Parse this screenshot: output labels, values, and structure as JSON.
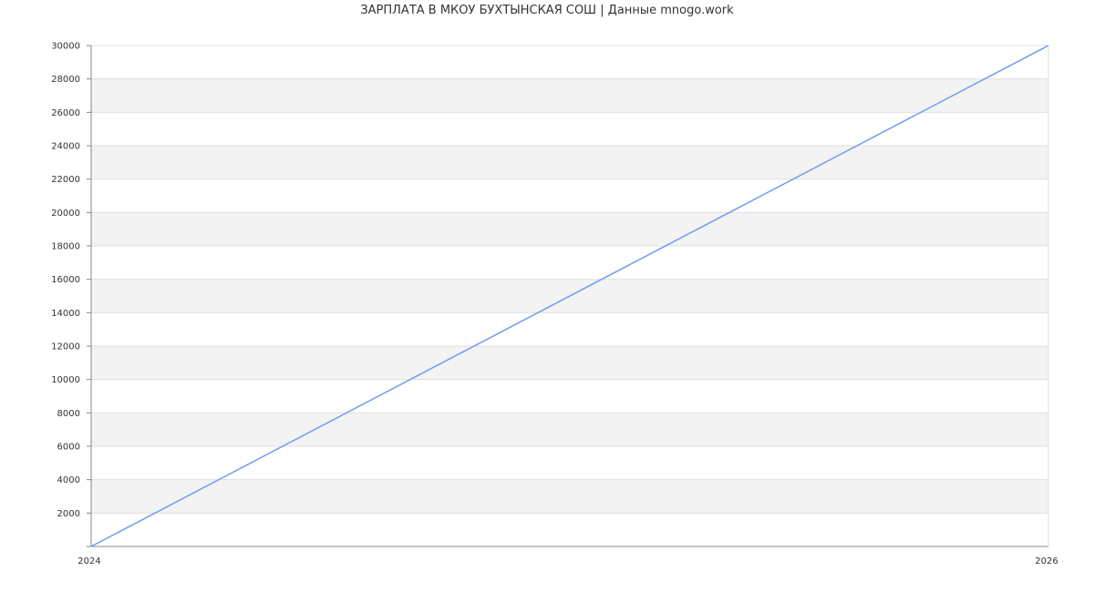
{
  "chart_data": {
    "type": "line",
    "title": "ЗАРПЛАТА В МКОУ БУХТЫНСКАЯ СОШ | Данные mnogo.work",
    "xlabel": "",
    "ylabel": "",
    "x_ticks": [
      "2024",
      "2026"
    ],
    "y_ticks": [
      2000,
      4000,
      6000,
      8000,
      10000,
      12000,
      14000,
      16000,
      18000,
      20000,
      22000,
      24000,
      26000,
      28000,
      30000
    ],
    "xlim": [
      2024,
      2026
    ],
    "ylim": [
      0,
      30000
    ],
    "grid": true,
    "banded_background": true,
    "series": [
      {
        "x": [
          2024,
          2026
        ],
        "values": [
          0,
          30000
        ],
        "color": "#6f9cf2"
      }
    ],
    "colors": {
      "band": "#f3f3f3",
      "grid": "#e0e0e0",
      "axis": "#888888"
    }
  }
}
